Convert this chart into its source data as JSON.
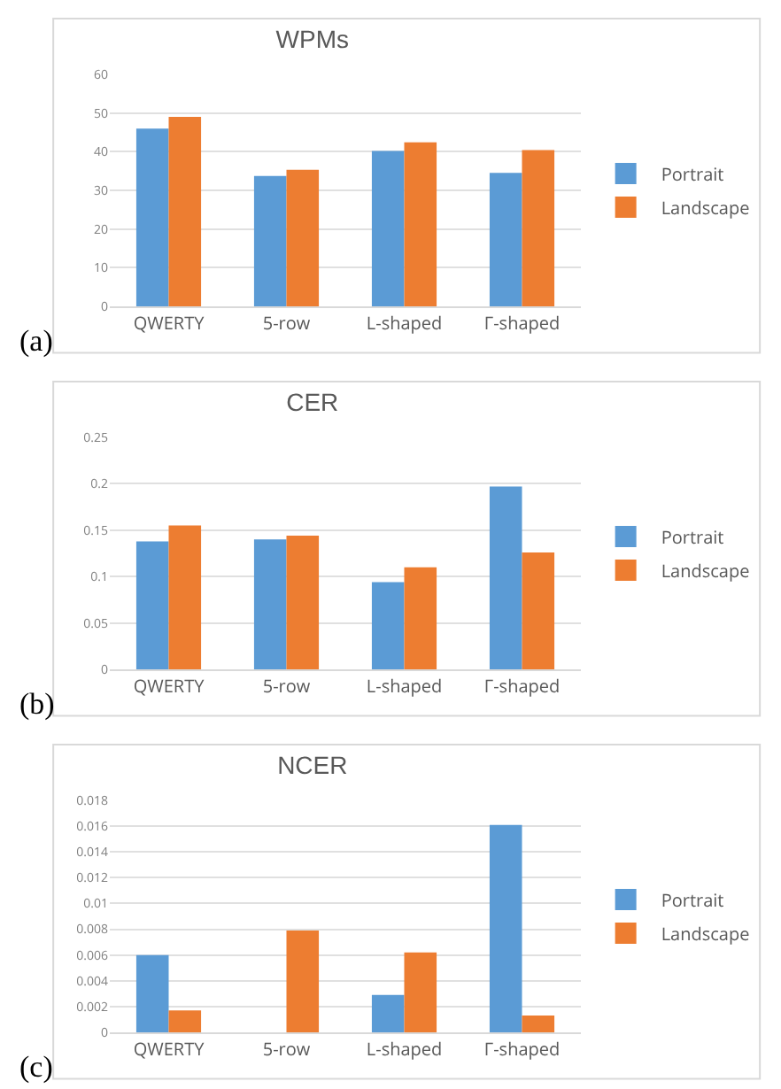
{
  "chart_data": [
    {
      "type": "bar",
      "title": "WPMs",
      "categories": [
        "QWERTY",
        "5-row",
        "L-shaped",
        "Γ-shaped"
      ],
      "series": [
        {
          "name": "Portrait",
          "color": "#5b9bd5",
          "values": [
            46,
            33.7,
            40.2,
            34.5
          ]
        },
        {
          "name": "Landscape",
          "color": "#ed7d31",
          "values": [
            49,
            35.3,
            42.4,
            40.4
          ]
        }
      ],
      "ylim": [
        0,
        60
      ],
      "yticks": [
        0,
        10,
        20,
        30,
        40,
        50,
        60
      ],
      "grid": "y",
      "legend": "right",
      "annotations": [
        "(a)"
      ]
    },
    {
      "type": "bar",
      "title": "CER",
      "categories": [
        "QWERTY",
        "5-row",
        "L-shaped",
        "Γ-shaped"
      ],
      "series": [
        {
          "name": "Portrait",
          "color": "#5b9bd5",
          "values": [
            0.138,
            0.14,
            0.094,
            0.197
          ]
        },
        {
          "name": "Landscape",
          "color": "#ed7d31",
          "values": [
            0.155,
            0.144,
            0.11,
            0.126
          ]
        }
      ],
      "ylim": [
        0,
        0.25
      ],
      "yticks": [
        0,
        0.05,
        0.1,
        0.15,
        0.2,
        0.25
      ],
      "grid": "y",
      "legend": "right",
      "annotations": [
        "(b)"
      ]
    },
    {
      "type": "bar",
      "title": "NCER",
      "categories": [
        "QWERTY",
        "5-row",
        "L-shaped",
        "Γ-shaped"
      ],
      "series": [
        {
          "name": "Portrait",
          "color": "#5b9bd5",
          "values": [
            0.006,
            0,
            0.0029,
            0.0161
          ]
        },
        {
          "name": "Landscape",
          "color": "#ed7d31",
          "values": [
            0.0017,
            0.0079,
            0.0062,
            0.0013
          ]
        }
      ],
      "ylim": [
        0,
        0.018
      ],
      "yticks": [
        0,
        0.002,
        0.004,
        0.006,
        0.008,
        0.01,
        0.012,
        0.014,
        0.016,
        0.018
      ],
      "grid": "y",
      "legend": "right",
      "annotations": [
        "(c)"
      ]
    }
  ]
}
